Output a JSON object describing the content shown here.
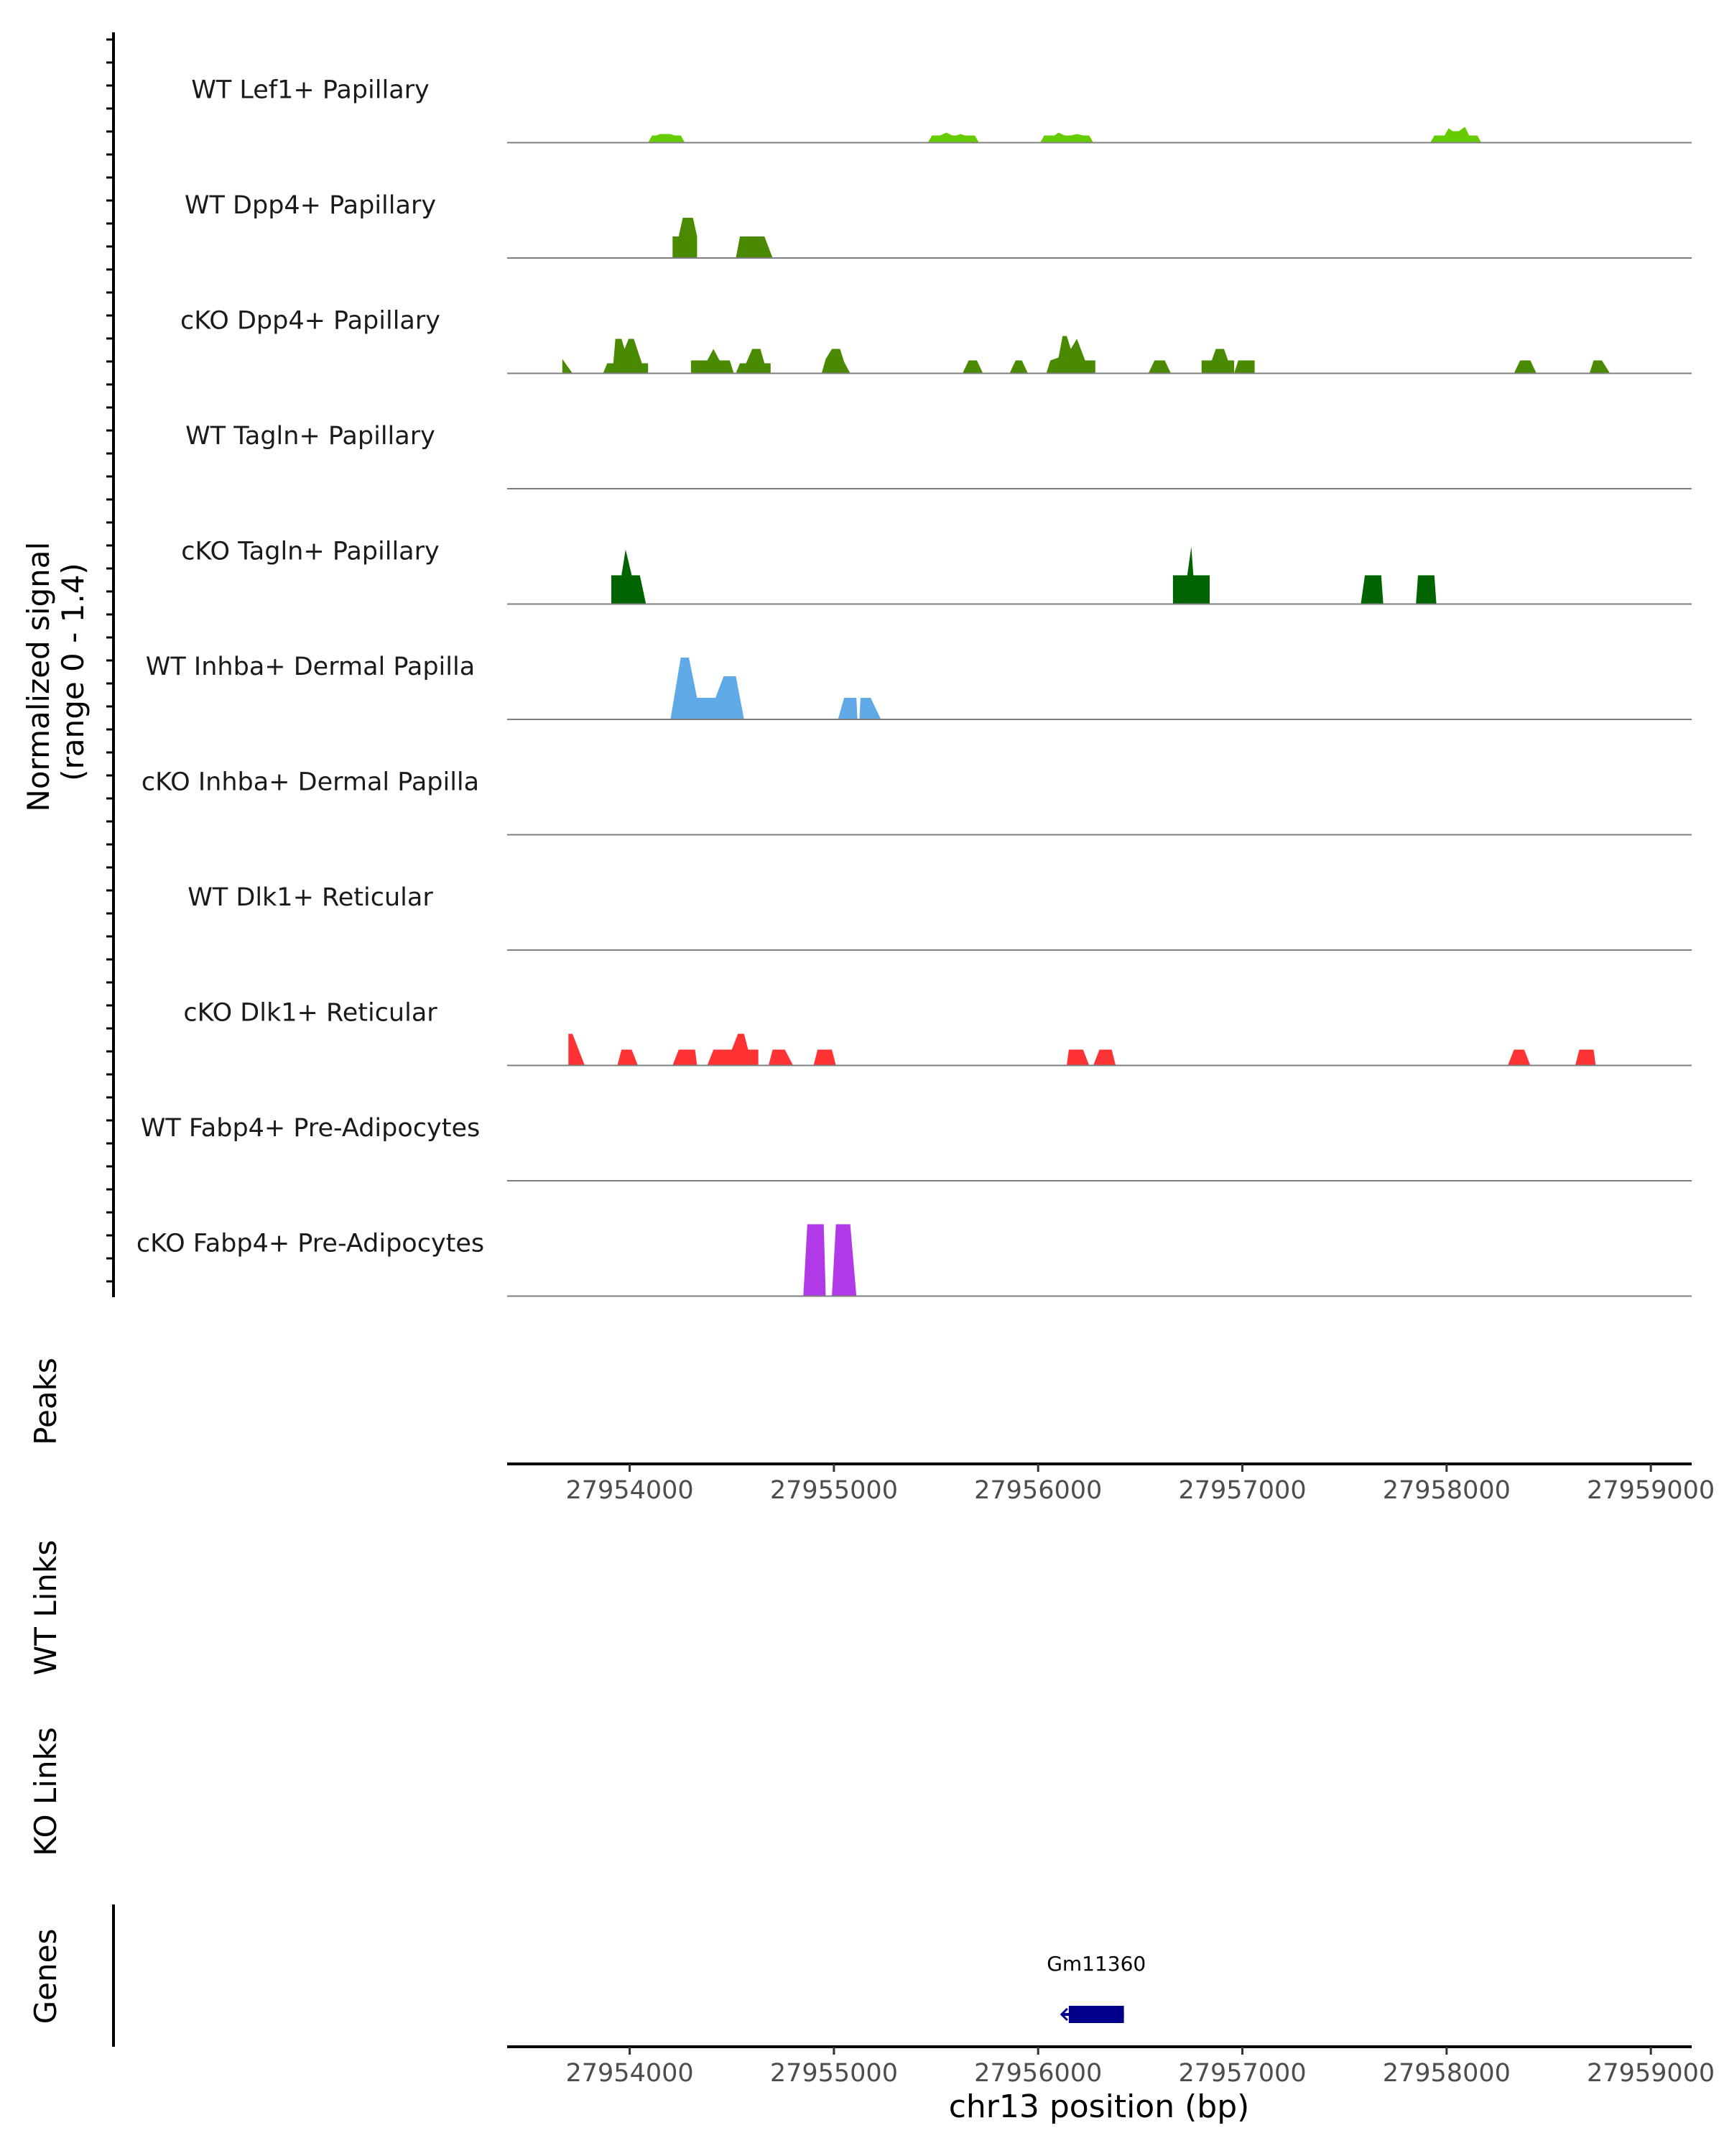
{
  "chart_data": {
    "type": "area",
    "title": "",
    "xlabel": "chr13 position (bp)",
    "x_range": [
      27953400,
      27959200
    ],
    "x_ticks": [
      "27954000",
      "27955000",
      "27956000",
      "27957000",
      "27958000",
      "27959000"
    ],
    "x_tick_values": [
      27954000,
      27955000,
      27956000,
      27957000,
      27958000,
      27959000
    ],
    "signal_ylabel_line1": "Normalized signal",
    "signal_ylabel_line2": "(range 0 - 1.4)",
    "signal_range": [
      0,
      1.4
    ],
    "tracks": [
      {
        "name": "WT Lef1+ Papillary",
        "color": "#66CC00",
        "points": [
          [
            27954090,
            0
          ],
          [
            27954110,
            0.25
          ],
          [
            27954130,
            0.25
          ],
          [
            27954150,
            0.3
          ],
          [
            27954200,
            0.3
          ],
          [
            27954220,
            0.25
          ],
          [
            27954250,
            0.25
          ],
          [
            27954270,
            0
          ],
          [
            27955460,
            0
          ],
          [
            27955480,
            0.25
          ],
          [
            27955520,
            0.25
          ],
          [
            27955550,
            0.35
          ],
          [
            27955580,
            0.25
          ],
          [
            27955600,
            0.25
          ],
          [
            27955620,
            0.3
          ],
          [
            27955640,
            0.25
          ],
          [
            27955690,
            0.25
          ],
          [
            27955710,
            0
          ],
          [
            27956010,
            0
          ],
          [
            27956030,
            0.25
          ],
          [
            27956080,
            0.25
          ],
          [
            27956100,
            0.35
          ],
          [
            27956130,
            0.25
          ],
          [
            27956160,
            0.25
          ],
          [
            27956190,
            0.3
          ],
          [
            27956220,
            0.25
          ],
          [
            27956250,
            0.25
          ],
          [
            27956270,
            0
          ],
          [
            27957920,
            0
          ],
          [
            27957940,
            0.25
          ],
          [
            27957990,
            0.25
          ],
          [
            27958010,
            0.5
          ],
          [
            27958030,
            0.4
          ],
          [
            27958060,
            0.4
          ],
          [
            27958090,
            0.55
          ],
          [
            27958110,
            0.25
          ],
          [
            27958150,
            0.25
          ],
          [
            27958170,
            0
          ]
        ]
      },
      {
        "name": "WT Dpp4+ Papillary",
        "color": "#4A8A00",
        "points": [
          [
            27954210,
            0
          ],
          [
            27954210,
            0.75
          ],
          [
            27954240,
            0.75
          ],
          [
            27954260,
            1.4
          ],
          [
            27954310,
            1.4
          ],
          [
            27954330,
            0.75
          ],
          [
            27954330,
            0
          ],
          [
            27954520,
            0
          ],
          [
            27954540,
            0.75
          ],
          [
            27954640,
            0.75
          ],
          [
            27954660,
            0.75
          ],
          [
            27954700,
            0
          ],
          [
            27954700,
            0
          ]
        ]
      },
      {
        "name": "cKO Dpp4+ Papillary",
        "color": "#4A8A00",
        "points": [
          [
            27953670,
            0
          ],
          [
            27953670,
            0.5
          ],
          [
            27953720,
            0
          ],
          [
            27953870,
            0
          ],
          [
            27953890,
            0.35
          ],
          [
            27953920,
            0.35
          ],
          [
            27953930,
            1.2
          ],
          [
            27953960,
            1.2
          ],
          [
            27953975,
            0.85
          ],
          [
            27953995,
            1.2
          ],
          [
            27954020,
            1.2
          ],
          [
            27954060,
            0.35
          ],
          [
            27954090,
            0.35
          ],
          [
            27954090,
            0
          ],
          [
            27954300,
            0
          ],
          [
            27954300,
            0.45
          ],
          [
            27954380,
            0.45
          ],
          [
            27954410,
            0.85
          ],
          [
            27954440,
            0.45
          ],
          [
            27954490,
            0.45
          ],
          [
            27954510,
            0
          ],
          [
            27954520,
            0
          ],
          [
            27954540,
            0.35
          ],
          [
            27954570,
            0.35
          ],
          [
            27954600,
            0.85
          ],
          [
            27954640,
            0.85
          ],
          [
            27954660,
            0.35
          ],
          [
            27954690,
            0.35
          ],
          [
            27954690,
            0
          ],
          [
            27954940,
            0
          ],
          [
            27954960,
            0.5
          ],
          [
            27954990,
            0.85
          ],
          [
            27955030,
            0.85
          ],
          [
            27955050,
            0.4
          ],
          [
            27955080,
            0
          ],
          [
            27955630,
            0
          ],
          [
            27955660,
            0.45
          ],
          [
            27955700,
            0.45
          ],
          [
            27955730,
            0
          ],
          [
            27955860,
            0
          ],
          [
            27955890,
            0.45
          ],
          [
            27955920,
            0.45
          ],
          [
            27955950,
            0
          ],
          [
            27956040,
            0
          ],
          [
            27956060,
            0.45
          ],
          [
            27956100,
            0.55
          ],
          [
            27956120,
            1.3
          ],
          [
            27956140,
            1.3
          ],
          [
            27956160,
            0.85
          ],
          [
            27956190,
            1.2
          ],
          [
            27956230,
            0.45
          ],
          [
            27956280,
            0.45
          ],
          [
            27956280,
            0
          ],
          [
            27956540,
            0
          ],
          [
            27956570,
            0.45
          ],
          [
            27956620,
            0.45
          ],
          [
            27956650,
            0
          ],
          [
            27956800,
            0
          ],
          [
            27956800,
            0.45
          ],
          [
            27956850,
            0.45
          ],
          [
            27956870,
            0.85
          ],
          [
            27956910,
            0.85
          ],
          [
            27956930,
            0.45
          ],
          [
            27956960,
            0.45
          ],
          [
            27956960,
            0
          ],
          [
            27956960,
            0
          ],
          [
            27956980,
            0.45
          ],
          [
            27957060,
            0.45
          ],
          [
            27957060,
            0
          ],
          [
            27958330,
            0
          ],
          [
            27958360,
            0.45
          ],
          [
            27958410,
            0.45
          ],
          [
            27958440,
            0
          ],
          [
            27958700,
            0
          ],
          [
            27958720,
            0.45
          ],
          [
            27958760,
            0.45
          ],
          [
            27958800,
            0
          ]
        ]
      },
      {
        "name": "WT Tagln+ Papillary",
        "color": "#006400",
        "points": []
      },
      {
        "name": "cKO Tagln+ Papillary",
        "color": "#006400",
        "points": [
          [
            27953910,
            0
          ],
          [
            27953910,
            1.0
          ],
          [
            27953960,
            1.0
          ],
          [
            27953980,
            1.9
          ],
          [
            27954010,
            1.0
          ],
          [
            27954050,
            1.0
          ],
          [
            27954080,
            0
          ],
          [
            27956660,
            0
          ],
          [
            27956660,
            1.0
          ],
          [
            27956730,
            1.0
          ],
          [
            27956750,
            2.0
          ],
          [
            27956760,
            1.0
          ],
          [
            27956840,
            1.0
          ],
          [
            27956840,
            0
          ],
          [
            27957580,
            0
          ],
          [
            27957600,
            1.0
          ],
          [
            27957680,
            1.0
          ],
          [
            27957690,
            0
          ],
          [
            27957850,
            0
          ],
          [
            27957860,
            1.0
          ],
          [
            27957940,
            1.0
          ],
          [
            27957950,
            0
          ]
        ]
      },
      {
        "name": "WT Inhba+ Dermal Papilla",
        "color": "#5EA9E6",
        "points": [
          [
            27954200,
            0
          ],
          [
            27954250,
            2.15
          ],
          [
            27954290,
            2.15
          ],
          [
            27954330,
            0.75
          ],
          [
            27954420,
            0.75
          ],
          [
            27954460,
            1.5
          ],
          [
            27954520,
            1.5
          ],
          [
            27954560,
            0
          ],
          [
            27955020,
            0
          ],
          [
            27955050,
            0.75
          ],
          [
            27955110,
            0.75
          ],
          [
            27955115,
            0
          ],
          [
            27955125,
            0
          ],
          [
            27955130,
            0.75
          ],
          [
            27955180,
            0.75
          ],
          [
            27955230,
            0
          ]
        ]
      },
      {
        "name": "cKO Inhba+ Dermal Papilla",
        "color": "#5EA9E6",
        "points": []
      },
      {
        "name": "WT Dlk1+ Reticular",
        "color": "#FF3333",
        "points": []
      },
      {
        "name": "cKO Dlk1+ Reticular",
        "color": "#FF3333",
        "points": [
          [
            27953700,
            0
          ],
          [
            27953700,
            1.1
          ],
          [
            27953720,
            1.1
          ],
          [
            27953780,
            0
          ],
          [
            27953940,
            0
          ],
          [
            27953960,
            0.55
          ],
          [
            27954010,
            0.55
          ],
          [
            27954040,
            0
          ],
          [
            27954210,
            0
          ],
          [
            27954240,
            0.55
          ],
          [
            27954320,
            0.55
          ],
          [
            27954330,
            0
          ],
          [
            27954380,
            0
          ],
          [
            27954410,
            0.55
          ],
          [
            27954500,
            0.55
          ],
          [
            27954530,
            1.1
          ],
          [
            27954560,
            1.1
          ],
          [
            27954580,
            0.55
          ],
          [
            27954630,
            0.55
          ],
          [
            27954630,
            0
          ],
          [
            27954680,
            0
          ],
          [
            27954700,
            0.55
          ],
          [
            27954760,
            0.55
          ],
          [
            27954800,
            0
          ],
          [
            27954900,
            0
          ],
          [
            27954920,
            0.55
          ],
          [
            27954990,
            0.55
          ],
          [
            27955010,
            0
          ],
          [
            27956140,
            0
          ],
          [
            27956150,
            0.55
          ],
          [
            27956220,
            0.55
          ],
          [
            27956250,
            0
          ],
          [
            27956270,
            0
          ],
          [
            27956300,
            0.55
          ],
          [
            27956360,
            0.55
          ],
          [
            27956380,
            0
          ],
          [
            27958300,
            0
          ],
          [
            27958330,
            0.55
          ],
          [
            27958380,
            0.55
          ],
          [
            27958410,
            0
          ],
          [
            27958630,
            0
          ],
          [
            27958650,
            0.55
          ],
          [
            27958720,
            0.55
          ],
          [
            27958730,
            0
          ]
        ]
      },
      {
        "name": "WT Fabp4+ Pre-Adipocytes",
        "color": "#B03AE8",
        "points": []
      },
      {
        "name": "cKO Fabp4+ Pre-Adipocytes",
        "color": "#B03AE8",
        "points": [
          [
            27954850,
            0
          ],
          [
            27954870,
            2.5
          ],
          [
            27954950,
            2.5
          ],
          [
            27954960,
            0
          ],
          [
            27954990,
            0
          ],
          [
            27955010,
            2.5
          ],
          [
            27955080,
            2.5
          ],
          [
            27955110,
            0
          ]
        ]
      }
    ],
    "panels": {
      "peaks_label": "Peaks",
      "wt_links_label": "WT Links",
      "ko_links_label": "KO Links",
      "genes_label": "Genes"
    },
    "genes": [
      {
        "name": "Gm11360",
        "start": 27956150,
        "end": 27956420,
        "strand": "-"
      }
    ]
  }
}
